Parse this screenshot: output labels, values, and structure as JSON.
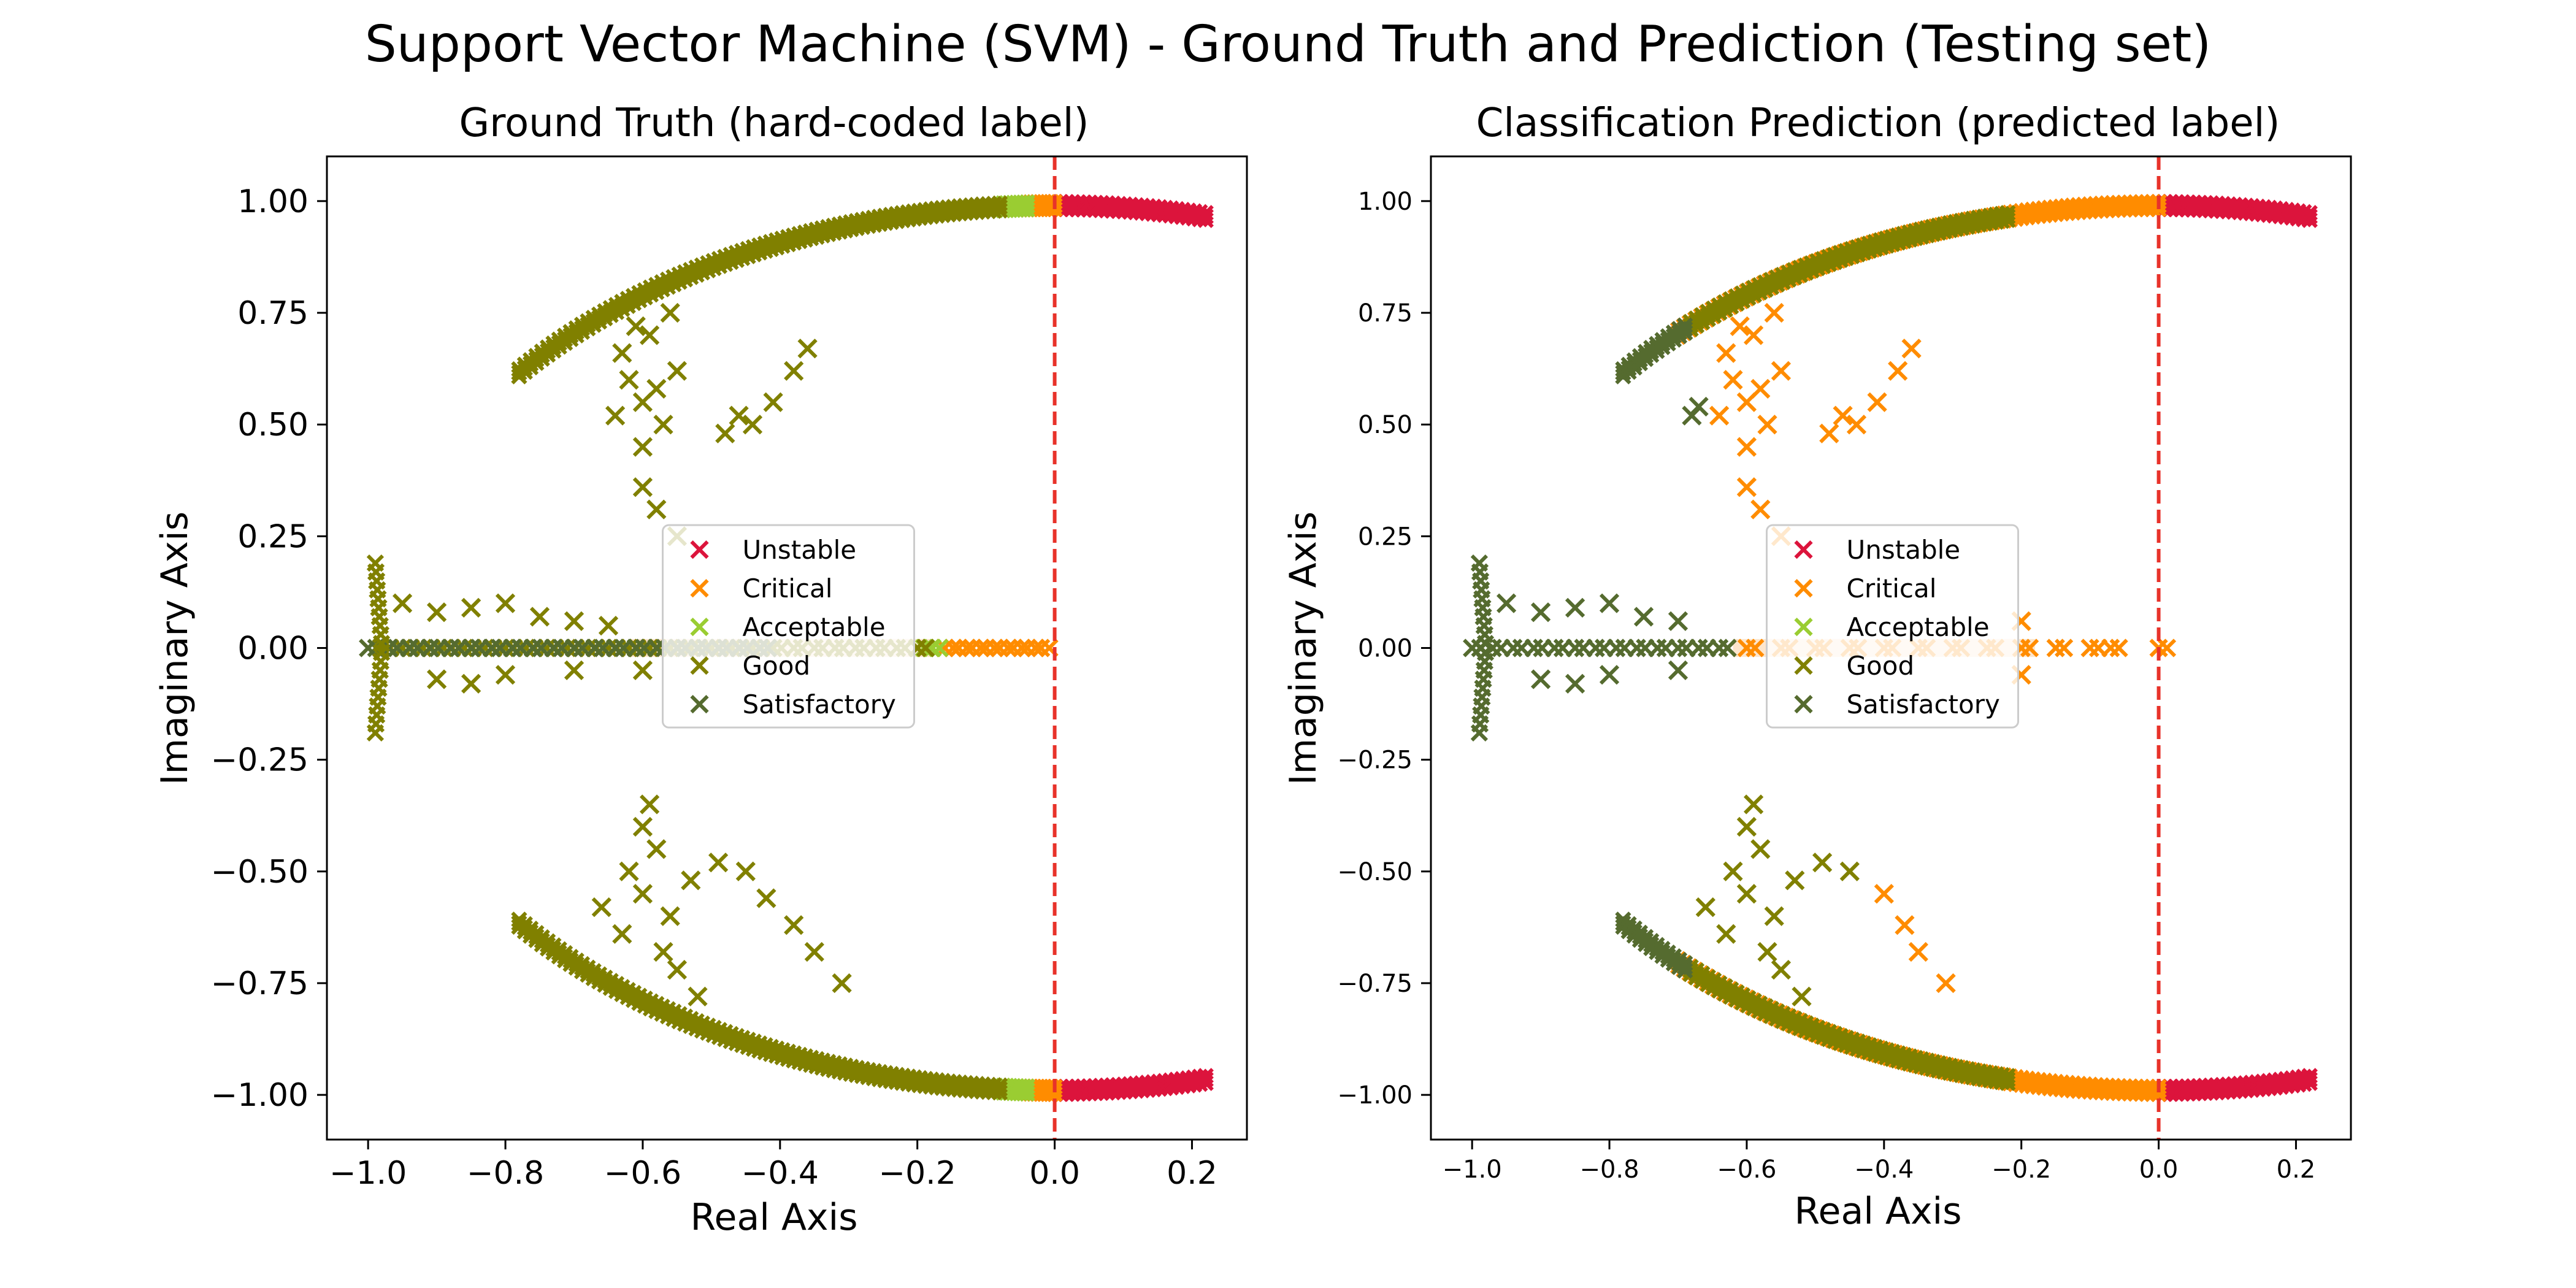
{
  "figure_title": "Support Vector Machine (SVM) - Ground Truth and Prediction (Testing set)",
  "colors": {
    "Unstable": "#dc143c",
    "Critical": "#ff8c00",
    "Acceptable": "#9acd32",
    "Good": "#808000",
    "Satisfactory": "#556b2f",
    "threshold_line": "#e8322a",
    "near_zero_cloud": "#fde3c8"
  },
  "chart_data": [
    {
      "type": "scatter",
      "marker": "x",
      "title": "Ground Truth (hard-coded label)",
      "xlabel": "Real Axis",
      "ylabel": "Imaginary Axis",
      "xlim": [
        -1.06,
        0.28
      ],
      "ylim": [
        -1.1,
        1.1
      ],
      "xticks": [
        -1.0,
        -0.8,
        -0.6,
        -0.4,
        -0.2,
        0.0,
        0.2
      ],
      "xtick_labels": [
        "−1.0",
        "−0.8",
        "−0.6",
        "−0.4",
        "−0.2",
        "0.0",
        "0.2"
      ],
      "yticks": [
        -1.0,
        -0.75,
        -0.5,
        -0.25,
        0.0,
        0.25,
        0.5,
        0.75,
        1.0
      ],
      "ytick_labels": [
        "−1.00",
        "−0.75",
        "−0.50",
        "−0.25",
        "0.00",
        "0.25",
        "0.50",
        "0.75",
        "1.00"
      ],
      "threshold_x": 0.0,
      "legend_position": "center",
      "legend": [
        "Unstable",
        "Critical",
        "Acceptable",
        "Good",
        "Satisfactory"
      ],
      "series": [
        {
          "name": "Unstable",
          "arcs": [
            [
              0.0,
              0.22
            ]
          ],
          "axis_x": [],
          "points": []
        },
        {
          "name": "Critical",
          "arcs": [
            [
              -0.04,
              0.0
            ]
          ],
          "axis_x": [
            -0.16,
            -0.14,
            -0.12,
            -0.1,
            -0.08,
            -0.06,
            -0.04,
            -0.02
          ],
          "points": []
        },
        {
          "name": "Acceptable",
          "arcs": [
            [
              -0.08,
              -0.04
            ]
          ],
          "axis_x": [
            -0.2,
            -0.19,
            -0.18
          ],
          "points": []
        },
        {
          "name": "Good",
          "arcs": [
            [
              -0.78,
              -0.08
            ]
          ],
          "axis_x": [
            -0.98,
            -0.95,
            -0.92,
            -0.89,
            -0.86,
            -0.83,
            -0.8,
            -0.77,
            -0.74,
            -0.71,
            -0.68,
            -0.65,
            -0.62,
            -0.59,
            -0.56,
            -0.53,
            -0.5,
            -0.47,
            -0.44,
            -0.41,
            -0.38,
            -0.35,
            -0.32,
            -0.29,
            -0.26,
            -0.23,
            -0.2
          ],
          "points": [
            [
              -0.6,
              0.55
            ],
            [
              -0.62,
              0.6
            ],
            [
              -0.58,
              0.58
            ],
            [
              -0.64,
              0.52
            ],
            [
              -0.57,
              0.5
            ],
            [
              -0.6,
              0.45
            ],
            [
              -0.55,
              0.62
            ],
            [
              -0.63,
              0.66
            ],
            [
              -0.59,
              0.7
            ],
            [
              -0.56,
              0.75
            ],
            [
              -0.61,
              0.72
            ],
            [
              -0.6,
              0.36
            ],
            [
              -0.58,
              0.31
            ],
            [
              -0.55,
              0.25
            ],
            [
              -0.48,
              0.48
            ],
            [
              -0.44,
              0.5
            ],
            [
              -0.41,
              0.55
            ],
            [
              -0.38,
              0.62
            ],
            [
              -0.36,
              0.67
            ],
            [
              -0.46,
              0.52
            ],
            [
              -0.6,
              -0.55
            ],
            [
              -0.62,
              -0.5
            ],
            [
              -0.58,
              -0.45
            ],
            [
              -0.56,
              -0.6
            ],
            [
              -0.63,
              -0.64
            ],
            [
              -0.6,
              -0.4
            ],
            [
              -0.59,
              -0.35
            ],
            [
              -0.57,
              -0.68
            ],
            [
              -0.55,
              -0.72
            ],
            [
              -0.52,
              -0.78
            ],
            [
              -0.49,
              -0.48
            ],
            [
              -0.45,
              -0.5
            ],
            [
              -0.42,
              -0.56
            ],
            [
              -0.38,
              -0.62
            ],
            [
              -0.35,
              -0.68
            ],
            [
              -0.31,
              -0.75
            ],
            [
              -0.66,
              -0.58
            ],
            [
              -0.53,
              -0.52
            ],
            [
              -0.95,
              0.1
            ],
            [
              -0.9,
              0.08
            ],
            [
              -0.85,
              0.09
            ],
            [
              -0.8,
              0.1
            ],
            [
              -0.75,
              0.07
            ],
            [
              -0.9,
              -0.07
            ],
            [
              -0.85,
              -0.08
            ],
            [
              -0.8,
              -0.06
            ],
            [
              -0.7,
              0.06
            ],
            [
              -0.7,
              -0.05
            ],
            [
              -0.65,
              0.05
            ],
            [
              -0.6,
              -0.05
            ]
          ]
        },
        {
          "name": "Satisfactory",
          "arcs": [],
          "axis_x": [
            -1.0,
            -0.97,
            -0.94,
            -0.91,
            -0.88,
            -0.85,
            -0.82,
            -0.79,
            -0.76,
            -0.73,
            -0.7,
            -0.67,
            -0.64,
            -0.61,
            -0.58,
            -0.55,
            -0.52,
            -0.49,
            -0.46,
            -0.43
          ],
          "points": []
        }
      ]
    },
    {
      "type": "scatter",
      "marker": "x",
      "title": "Classification Prediction (predicted label)",
      "xlabel": "Real Axis",
      "ylabel": "Imaginary Axis",
      "xlim": [
        -1.06,
        0.28
      ],
      "ylim": [
        -1.1,
        1.1
      ],
      "xticks": [
        -1.0,
        -0.8,
        -0.6,
        -0.4,
        -0.2,
        0.0,
        0.2
      ],
      "xtick_labels": [
        "−1.0",
        "−0.8",
        "−0.6",
        "−0.4",
        "−0.2",
        "0.0",
        "0.2"
      ],
      "yticks": [
        -1.0,
        -0.75,
        -0.5,
        -0.25,
        0.0,
        0.25,
        0.5,
        0.75,
        1.0
      ],
      "ytick_labels": [
        "−1.00",
        "−0.75",
        "−0.50",
        "−0.25",
        "0.00",
        "0.25",
        "0.50",
        "0.75",
        "1.00"
      ],
      "threshold_x": 0.0,
      "legend_position": "center",
      "legend": [
        "Unstable",
        "Critical",
        "Acceptable",
        "Good",
        "Satisfactory"
      ],
      "series": [
        {
          "name": "Unstable",
          "arcs": [
            [
              0.0,
              0.22
            ]
          ],
          "axis_x": [],
          "points": []
        },
        {
          "name": "Critical",
          "arcs": [
            [
              -0.7,
              0.0
            ]
          ],
          "axis_x": [
            -0.6,
            -0.55,
            -0.5,
            -0.45,
            -0.4,
            -0.35,
            -0.3,
            -0.25,
            -0.2,
            -0.15,
            -0.1,
            -0.07,
            0.0
          ],
          "points": [
            [
              -0.6,
              0.55
            ],
            [
              -0.62,
              0.6
            ],
            [
              -0.58,
              0.58
            ],
            [
              -0.64,
              0.52
            ],
            [
              -0.57,
              0.5
            ],
            [
              -0.6,
              0.45
            ],
            [
              -0.55,
              0.62
            ],
            [
              -0.63,
              0.66
            ],
            [
              -0.59,
              0.7
            ],
            [
              -0.56,
              0.75
            ],
            [
              -0.61,
              0.72
            ],
            [
              -0.6,
              0.36
            ],
            [
              -0.58,
              0.31
            ],
            [
              -0.55,
              0.25
            ],
            [
              -0.48,
              0.48
            ],
            [
              -0.44,
              0.5
            ],
            [
              -0.41,
              0.55
            ],
            [
              -0.38,
              0.62
            ],
            [
              -0.36,
              0.67
            ],
            [
              -0.46,
              0.52
            ],
            [
              -0.2,
              0.06
            ],
            [
              -0.2,
              -0.06
            ],
            [
              -0.4,
              -0.55
            ],
            [
              -0.37,
              -0.62
            ],
            [
              -0.35,
              -0.68
            ],
            [
              -0.31,
              -0.75
            ]
          ]
        },
        {
          "name": "Acceptable",
          "arcs": [],
          "axis_x": [],
          "points": []
        },
        {
          "name": "Good",
          "arcs": [
            [
              -0.69,
              -0.22
            ]
          ],
          "axis_x": [],
          "points": [
            [
              -0.6,
              -0.55
            ],
            [
              -0.62,
              -0.5
            ],
            [
              -0.58,
              -0.45
            ],
            [
              -0.56,
              -0.6
            ],
            [
              -0.63,
              -0.64
            ],
            [
              -0.6,
              -0.4
            ],
            [
              -0.59,
              -0.35
            ],
            [
              -0.57,
              -0.68
            ],
            [
              -0.55,
              -0.72
            ],
            [
              -0.52,
              -0.78
            ],
            [
              -0.49,
              -0.48
            ],
            [
              -0.45,
              -0.5
            ],
            [
              -0.66,
              -0.58
            ],
            [
              -0.53,
              -0.52
            ]
          ]
        },
        {
          "name": "Satisfactory",
          "arcs": [
            [
              -0.78,
              -0.69
            ]
          ],
          "axis_x": [
            -1.0,
            -0.97,
            -0.94,
            -0.91,
            -0.88,
            -0.85,
            -0.82,
            -0.79,
            -0.76,
            -0.73,
            -0.7,
            -0.67,
            -0.64
          ],
          "points": [
            [
              -0.95,
              0.1
            ],
            [
              -0.9,
              0.08
            ],
            [
              -0.85,
              0.09
            ],
            [
              -0.8,
              0.1
            ],
            [
              -0.75,
              0.07
            ],
            [
              -0.9,
              -0.07
            ],
            [
              -0.85,
              -0.08
            ],
            [
              -0.8,
              -0.06
            ],
            [
              -0.7,
              0.06
            ],
            [
              -0.7,
              -0.05
            ],
            [
              -0.68,
              0.52
            ],
            [
              -0.67,
              0.54
            ]
          ]
        }
      ]
    }
  ]
}
